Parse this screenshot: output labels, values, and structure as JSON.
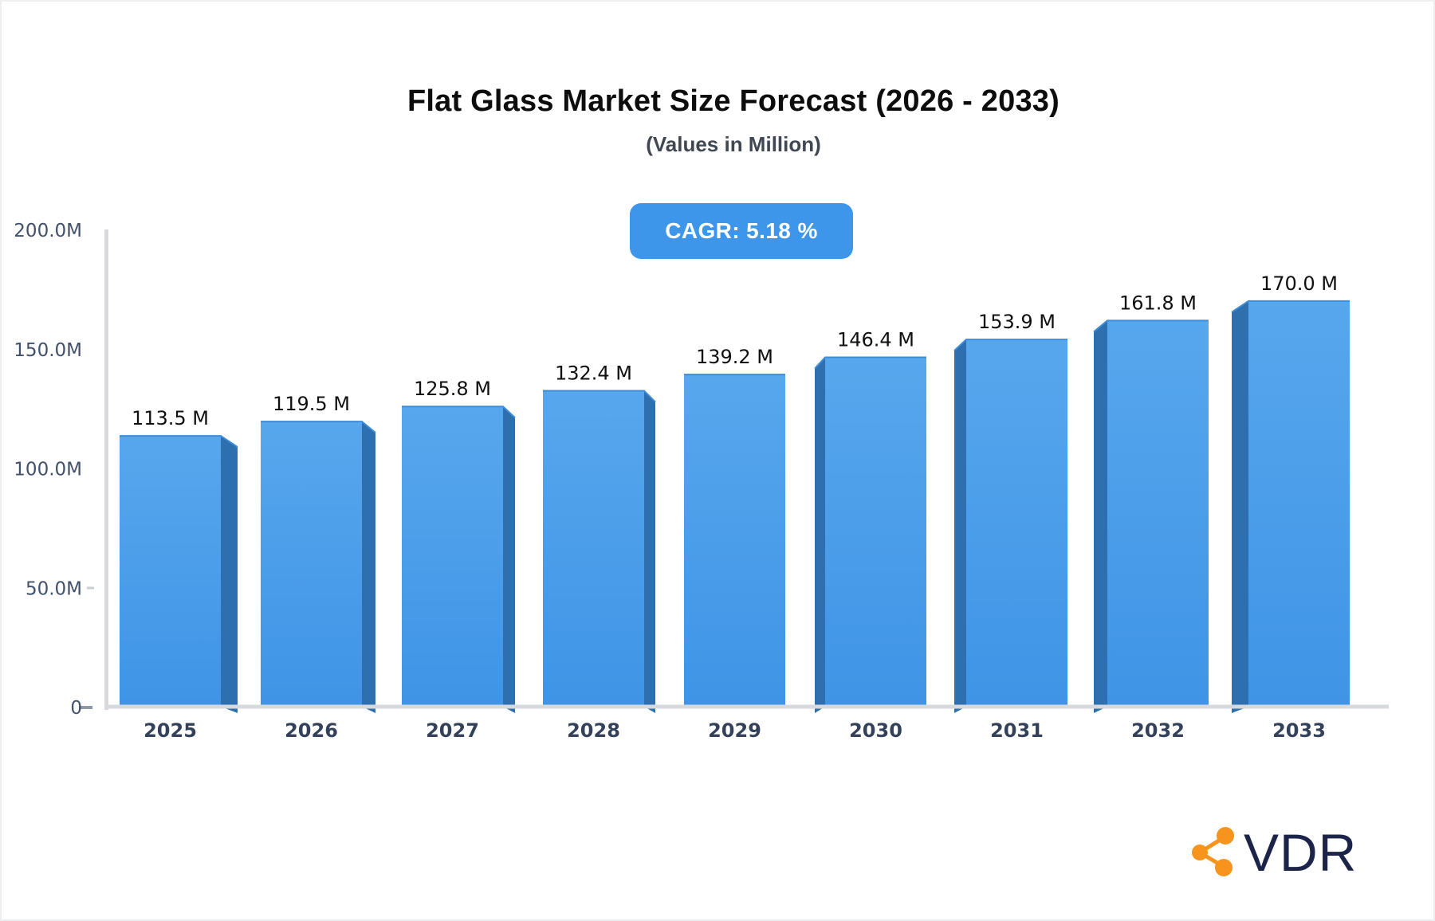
{
  "header": {
    "title": "Flat Glass Market Size Forecast (2026 - 2033)",
    "subtitle": "(Values in Million)",
    "cagr_badge": "CAGR: 5.18 %"
  },
  "chart_data": {
    "type": "bar",
    "title": "Flat Glass Market Size Forecast (2026 - 2033)",
    "subtitle": "(Values in Million)",
    "cagr_percent": 5.18,
    "categories": [
      "2025",
      "2026",
      "2027",
      "2028",
      "2029",
      "2030",
      "2031",
      "2032",
      "2033"
    ],
    "values": [
      113.5,
      119.5,
      125.8,
      132.4,
      139.2,
      146.4,
      153.9,
      161.8,
      170.0
    ],
    "value_label_suffix": " M",
    "xlabel": "",
    "ylabel": "",
    "ylim": [
      0,
      200
    ],
    "ytick_values": [
      0,
      50,
      100,
      150,
      200
    ],
    "ytick_labels": [
      "0",
      "50.0M",
      "100.0M",
      "150.0M",
      "200.0M"
    ],
    "grid": "off",
    "legend": "none",
    "style": "pseudo-3d bars, side faces angled toward center"
  },
  "colors": {
    "bar_face_top": "#57a7ed",
    "bar_face_bottom": "#3f94e6",
    "bar_top_edge": "#3e8cd8",
    "bar_side": "#2e70af",
    "axis_line": "#d6d9dd",
    "tick_zero": "#8f98a5",
    "tick_minor": "#c9ced5",
    "badge_bg": "#3d96ea",
    "badge_text": "#ffffff",
    "logo_icon": "#f7941d",
    "logo_text": "#1d2449"
  },
  "logo": {
    "text": "VDR"
  }
}
